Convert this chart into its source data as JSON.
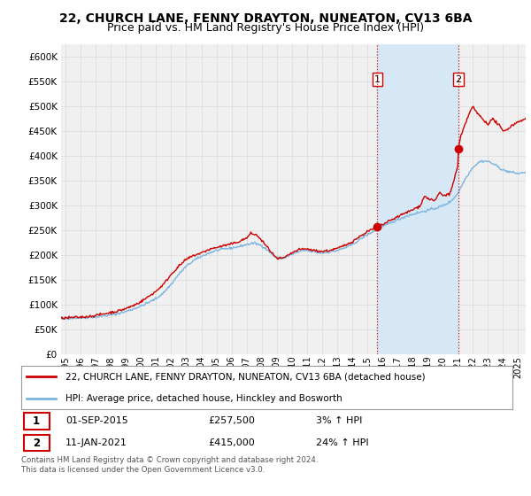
{
  "title": "22, CHURCH LANE, FENNY DRAYTON, NUNEATON, CV13 6BA",
  "subtitle": "Price paid vs. HM Land Registry's House Price Index (HPI)",
  "ytick_values": [
    0,
    50000,
    100000,
    150000,
    200000,
    250000,
    300000,
    350000,
    400000,
    450000,
    500000,
    550000,
    600000
  ],
  "ylim": [
    0,
    625000
  ],
  "xlim_start": 1994.7,
  "xlim_end": 2025.5,
  "xtick_years": [
    1995,
    1996,
    1997,
    1998,
    1999,
    2000,
    2001,
    2002,
    2003,
    2004,
    2005,
    2006,
    2007,
    2008,
    2009,
    2010,
    2011,
    2012,
    2013,
    2014,
    2015,
    2016,
    2017,
    2018,
    2019,
    2020,
    2021,
    2022,
    2023,
    2024,
    2025
  ],
  "hpi_color": "#7ab6e0",
  "price_color": "#cc0000",
  "background_color": "#ffffff",
  "plot_bg_color": "#f0f0f0",
  "grid_color": "#dddddd",
  "shade_color": "#d6e8f5",
  "purchase1_x": 2015.67,
  "purchase1_y": 257500,
  "purchase2_x": 2021.03,
  "purchase2_y": 415000,
  "vline1_x": 2015.67,
  "vline2_x": 2021.03,
  "legend_line1": "22, CHURCH LANE, FENNY DRAYTON, NUNEATON, CV13 6BA (detached house)",
  "legend_line2": "HPI: Average price, detached house, Hinckley and Bosworth",
  "ann1_date": "01-SEP-2015",
  "ann1_price": "£257,500",
  "ann1_hpi": "3% ↑ HPI",
  "ann2_date": "11-JAN-2021",
  "ann2_price": "£415,000",
  "ann2_hpi": "24% ↑ HPI",
  "footer": "Contains HM Land Registry data © Crown copyright and database right 2024.\nThis data is licensed under the Open Government Licence v3.0.",
  "title_fontsize": 10,
  "subtitle_fontsize": 9
}
